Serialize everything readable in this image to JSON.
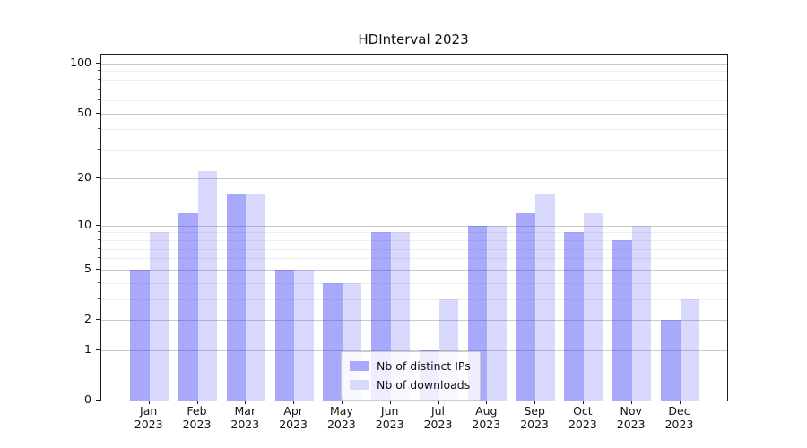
{
  "title": "HDInterval 2023",
  "year": "2023",
  "chart_data": {
    "type": "bar",
    "title": "HDInterval 2023",
    "categories": [
      "Jan",
      "Feb",
      "Mar",
      "Apr",
      "May",
      "Jun",
      "Jul",
      "Aug",
      "Sep",
      "Oct",
      "Nov",
      "Dec"
    ],
    "category_year_suffix": "2023",
    "series": [
      {
        "name": "Nb of distinct IPs",
        "color": "#a9a9fb",
        "fill": "rgba(64,64,248,0.45)",
        "values": [
          5,
          12,
          16,
          5,
          4,
          9,
          1,
          10,
          12,
          9,
          8,
          2
        ]
      },
      {
        "name": "Nb of downloads",
        "color": "#d9d9fc",
        "fill": "rgba(64,64,248,0.2)",
        "values": [
          9,
          22,
          16,
          5,
          4,
          9,
          3,
          10,
          16,
          12,
          10,
          3
        ]
      }
    ],
    "xlabel": "",
    "ylabel": "",
    "yscale": "log1p",
    "ylim": [
      0,
      113
    ],
    "y_major_ticks": [
      100,
      50,
      20,
      10,
      5,
      2,
      1,
      0
    ],
    "y_minor_gridlines": [
      90,
      80,
      70,
      60,
      40,
      30,
      9,
      8,
      7,
      6,
      4,
      3
    ],
    "grid": "on",
    "legend_position": "lower-center"
  }
}
